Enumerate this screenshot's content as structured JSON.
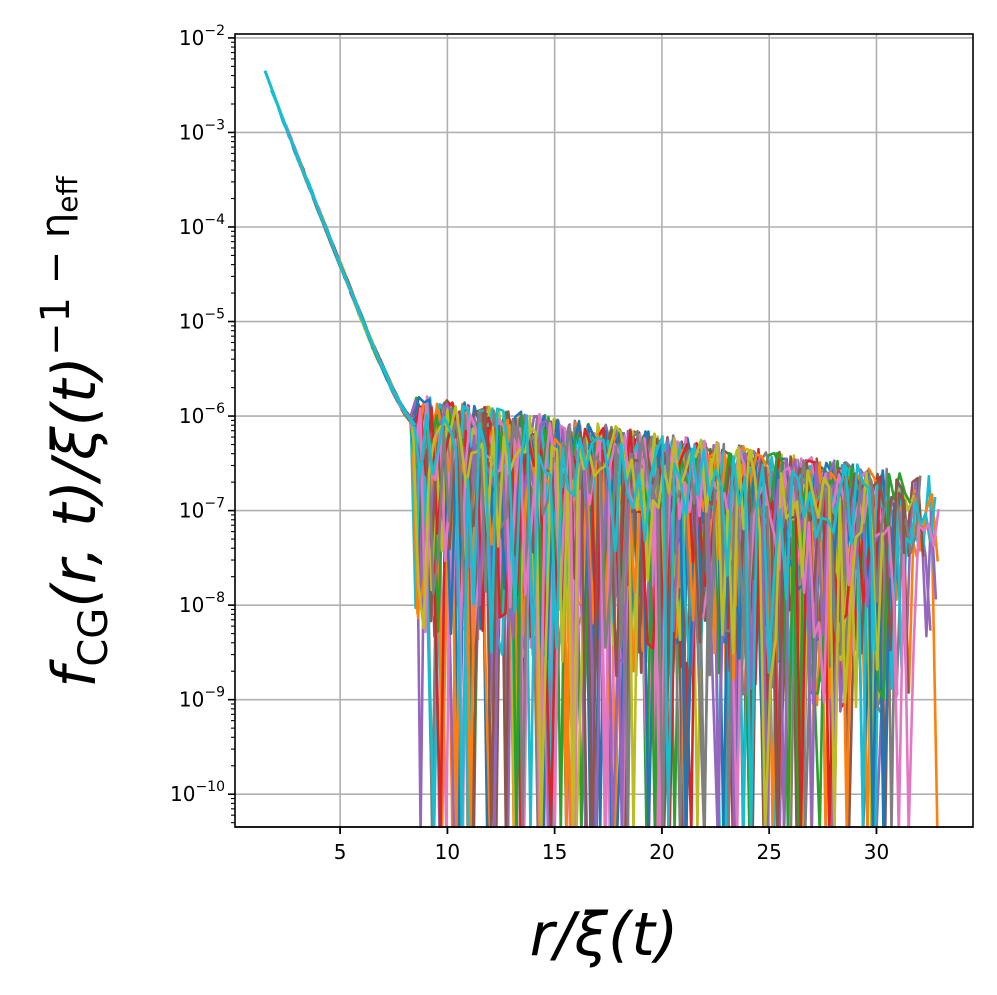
{
  "chart_data": {
    "type": "line",
    "title": "",
    "xlabel": "r/ξ(t)",
    "ylabel": "f_CG(r, t)/ξ(t)^(−1 − η_eff)",
    "xlabel_parts": {
      "main": "r/ξ(t)"
    },
    "ylabel_parts": {
      "f": "f",
      "sub": "CG",
      "mid": "(r, t)/ξ(t)",
      "sup_exp": "−1 − η",
      "sup_sub": "eff"
    },
    "xscale": "linear",
    "yscale": "log",
    "xlim": [
      0.1,
      34.5
    ],
    "ylim": [
      4.5e-11,
      0.011
    ],
    "xticks": [
      5,
      10,
      15,
      20,
      25,
      30
    ],
    "xtick_labels": [
      "5",
      "10",
      "15",
      "20",
      "25",
      "30"
    ],
    "yticks": [
      -10,
      -9,
      -8,
      -7,
      -6,
      -5,
      -4,
      -3,
      -2
    ],
    "ytick_labels": [
      {
        "base": "10",
        "exp": "−10"
      },
      {
        "base": "10",
        "exp": "−9"
      },
      {
        "base": "10",
        "exp": "−8"
      },
      {
        "base": "10",
        "exp": "−7"
      },
      {
        "base": "10",
        "exp": "−6"
      },
      {
        "base": "10",
        "exp": "−5"
      },
      {
        "base": "10",
        "exp": "−4"
      },
      {
        "base": "10",
        "exp": "−3"
      },
      {
        "base": "10",
        "exp": "−2"
      }
    ],
    "grid": true,
    "legend": "none",
    "series_count": 40,
    "colors": [
      "#1f77b4",
      "#ff7f0e",
      "#2ca02c",
      "#d62728",
      "#9467bd",
      "#8c564b",
      "#e377c2",
      "#7f7f7f",
      "#bcbd22",
      "#17becf"
    ],
    "master_curve": {
      "x": [
        1.5,
        2.5,
        3.5,
        4.5,
        5.5,
        6.5,
        7.0,
        7.5,
        8.0,
        8.5
      ],
      "y": [
        0.0045,
        0.0011,
        0.00029,
        7.8e-05,
        2.1e-05,
        5.7e-06,
        3.2e-06,
        1.8e-06,
        1.1e-06,
        8e-07
      ]
    },
    "noise_floor": {
      "onset_x": 8.5,
      "level_at_onset": 6e-07,
      "level_at_end": 8e-08,
      "end_x": 33.0,
      "min_dip": 1e-10
    }
  }
}
